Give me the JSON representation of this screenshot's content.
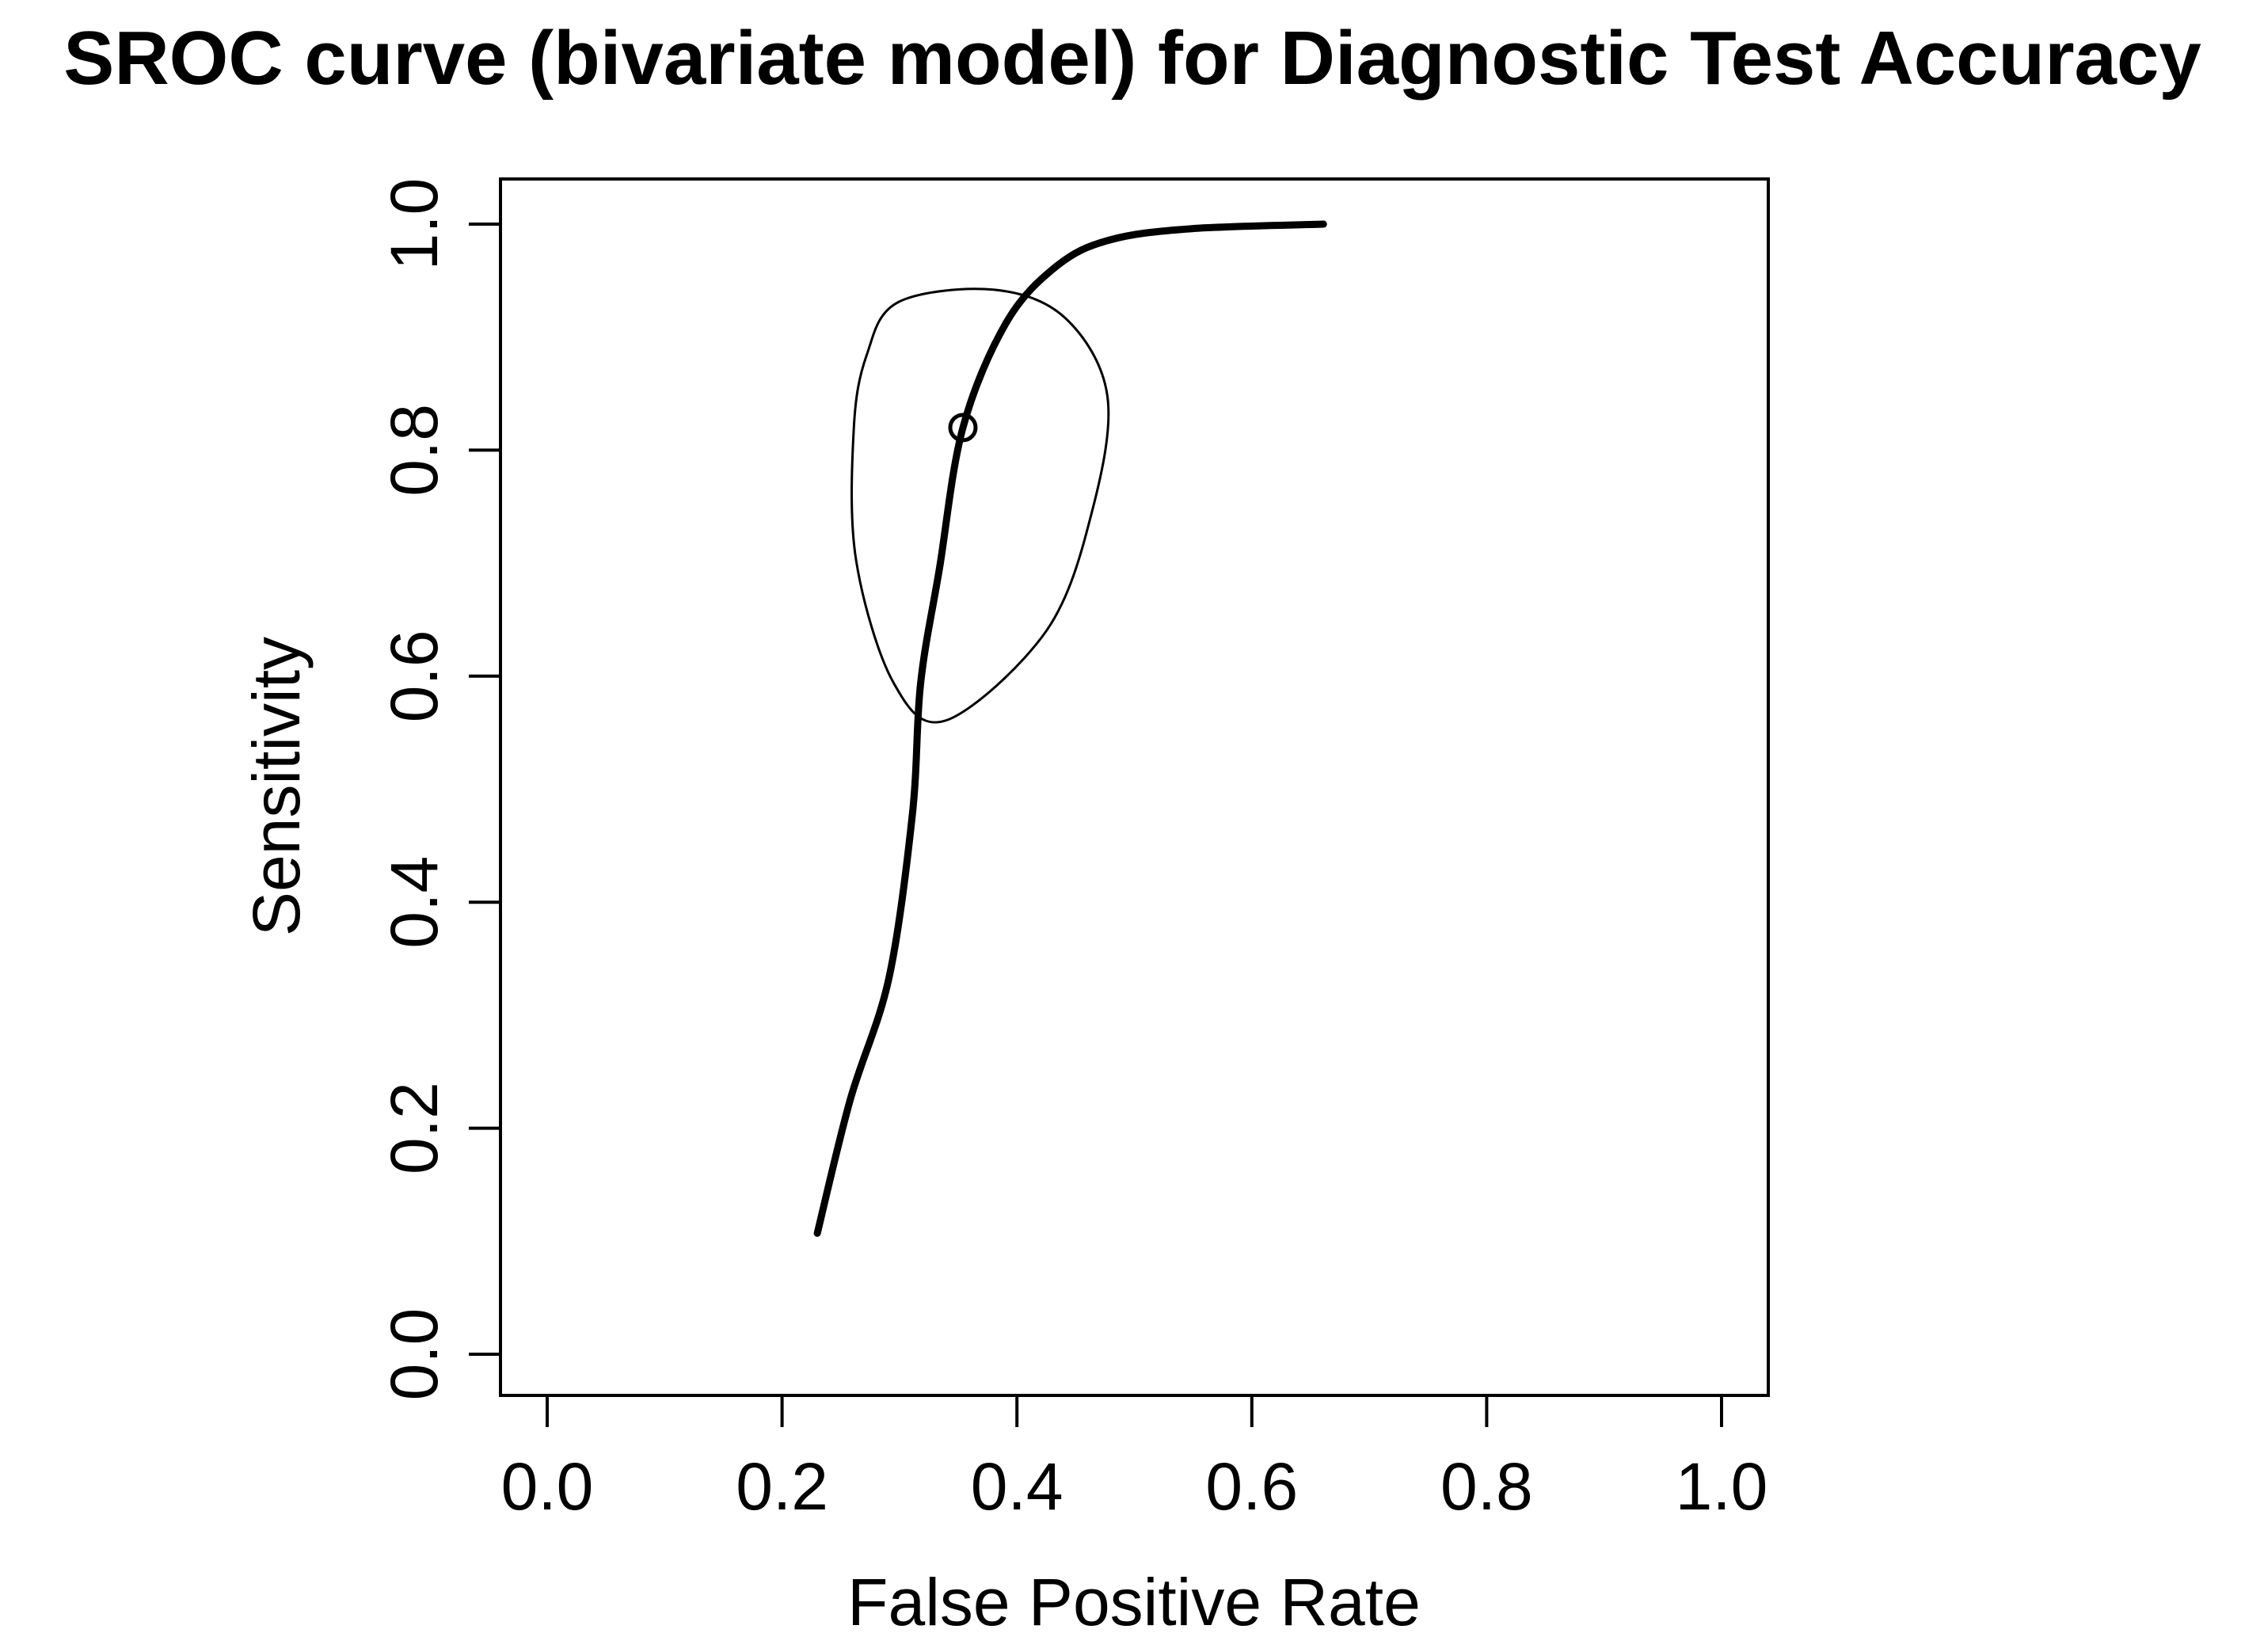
{
  "figure": {
    "background_color": "#ffffff",
    "foreground_color": "#000000"
  },
  "chart_data": {
    "type": "line",
    "title": "SROC curve (bivariate model) for Diagnostic Test Accuracy",
    "xlabel": "False Positive Rate",
    "ylabel": "Sensitivity",
    "xlim": [
      0.0,
      1.0
    ],
    "ylim": [
      0.0,
      1.0
    ],
    "grid": false,
    "legend": false,
    "x_ticks": {
      "values": [
        0.0,
        0.2,
        0.4,
        0.6,
        0.8,
        1.0
      ],
      "labels": [
        "0.0",
        "0.2",
        "0.4",
        "0.6",
        "0.8",
        "1.0"
      ]
    },
    "y_ticks": {
      "values": [
        0.0,
        0.2,
        0.4,
        0.6,
        0.8,
        1.0
      ],
      "labels": [
        "0.0",
        "0.2",
        "0.4",
        "0.6",
        "0.8",
        "1.0"
      ]
    },
    "series": [
      {
        "name": "SROC curve",
        "kind": "curve",
        "color": "#000000",
        "stroke_width": 9,
        "points": [
          [
            0.23,
            0.107
          ],
          [
            0.258,
            0.225
          ],
          [
            0.291,
            0.333
          ],
          [
            0.311,
            0.478
          ],
          [
            0.318,
            0.594
          ],
          [
            0.334,
            0.695
          ],
          [
            0.354,
            0.82
          ],
          [
            0.391,
            0.913
          ],
          [
            0.434,
            0.963
          ],
          [
            0.479,
            0.986
          ],
          [
            0.549,
            0.996
          ],
          [
            0.661,
            1.0
          ]
        ]
      },
      {
        "name": "confidence region contour",
        "kind": "closed-contour",
        "color": "#000000",
        "stroke_width": 3,
        "points": [
          [
            0.38,
            0.942
          ],
          [
            0.441,
            0.917
          ],
          [
            0.477,
            0.848
          ],
          [
            0.464,
            0.746
          ],
          [
            0.425,
            0.64
          ],
          [
            0.34,
            0.561
          ],
          [
            0.295,
            0.594
          ],
          [
            0.263,
            0.703
          ],
          [
            0.261,
            0.818
          ],
          [
            0.272,
            0.884
          ],
          [
            0.299,
            0.931
          ]
        ]
      },
      {
        "name": "summary point",
        "kind": "point",
        "marker": "open-circle",
        "color": "#000000",
        "x": 0.354,
        "y": 0.82
      }
    ]
  }
}
